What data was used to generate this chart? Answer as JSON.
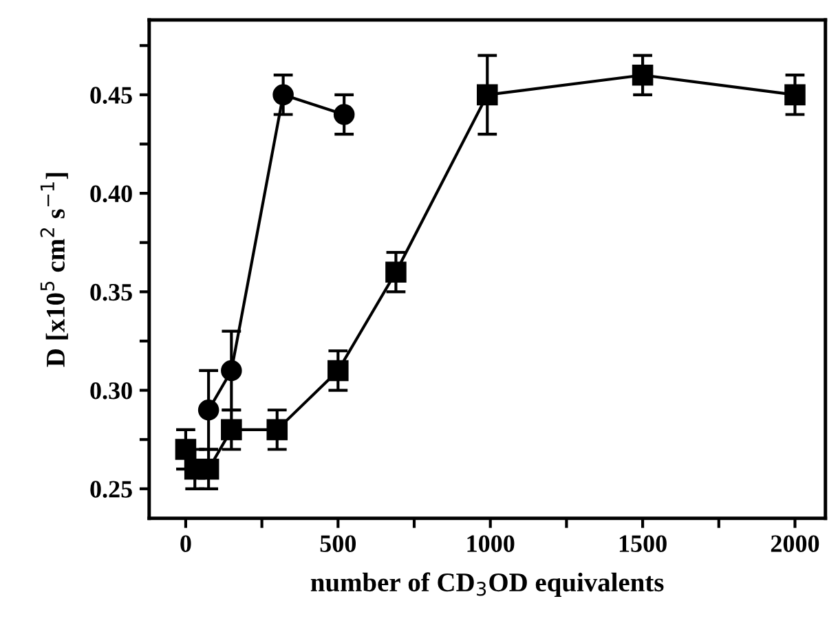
{
  "chart_data": {
    "type": "line",
    "xlabel": "number of CD$_{3}$OD equivalents",
    "ylabel": "D [x10$^{5}$ cm$^{2}$ s$^{−1}$]",
    "xlim": [
      -120,
      2100
    ],
    "ylim": [
      0.235,
      0.488
    ],
    "xticks": [
      0,
      {
        "value": 250,
        "label": null
      },
      500,
      {
        "value": 750,
        "label": null
      },
      1000,
      {
        "value": 1250,
        "label": null
      },
      1500,
      {
        "value": 1750,
        "label": null
      },
      2000
    ],
    "yticks": [
      0.25,
      {
        "value": 0.275,
        "label": null
      },
      {
        "value": 0.3,
        "label": "0.30"
      },
      {
        "value": 0.325,
        "label": null
      },
      0.35,
      {
        "value": 0.375,
        "label": null
      },
      {
        "value": 0.4,
        "label": "0.40"
      },
      {
        "value": 0.425,
        "label": null
      },
      0.45,
      {
        "value": 0.475,
        "label": null
      }
    ],
    "grid": false,
    "series": [
      {
        "color": "#000000",
        "marker": "square",
        "line_style": "solid",
        "x": [
          0,
          30,
          75,
          150,
          300,
          500,
          690,
          990,
          1500,
          2000
        ],
        "values": [
          0.27,
          0.26,
          0.26,
          0.28,
          0.28,
          0.31,
          0.36,
          0.45,
          0.46,
          0.45
        ],
        "errors": [
          0.01,
          0.01,
          0.01,
          0.01,
          0.01,
          0.01,
          0.01,
          0.02,
          0.01,
          0.01
        ]
      },
      {
        "color": "#000000",
        "marker": "circle",
        "line_style": "solid",
        "x": [
          75,
          150,
          320,
          520
        ],
        "values": [
          0.29,
          0.31,
          0.45,
          0.44
        ],
        "errors": [
          0.02,
          0.02,
          0.01,
          0.01
        ]
      }
    ]
  }
}
